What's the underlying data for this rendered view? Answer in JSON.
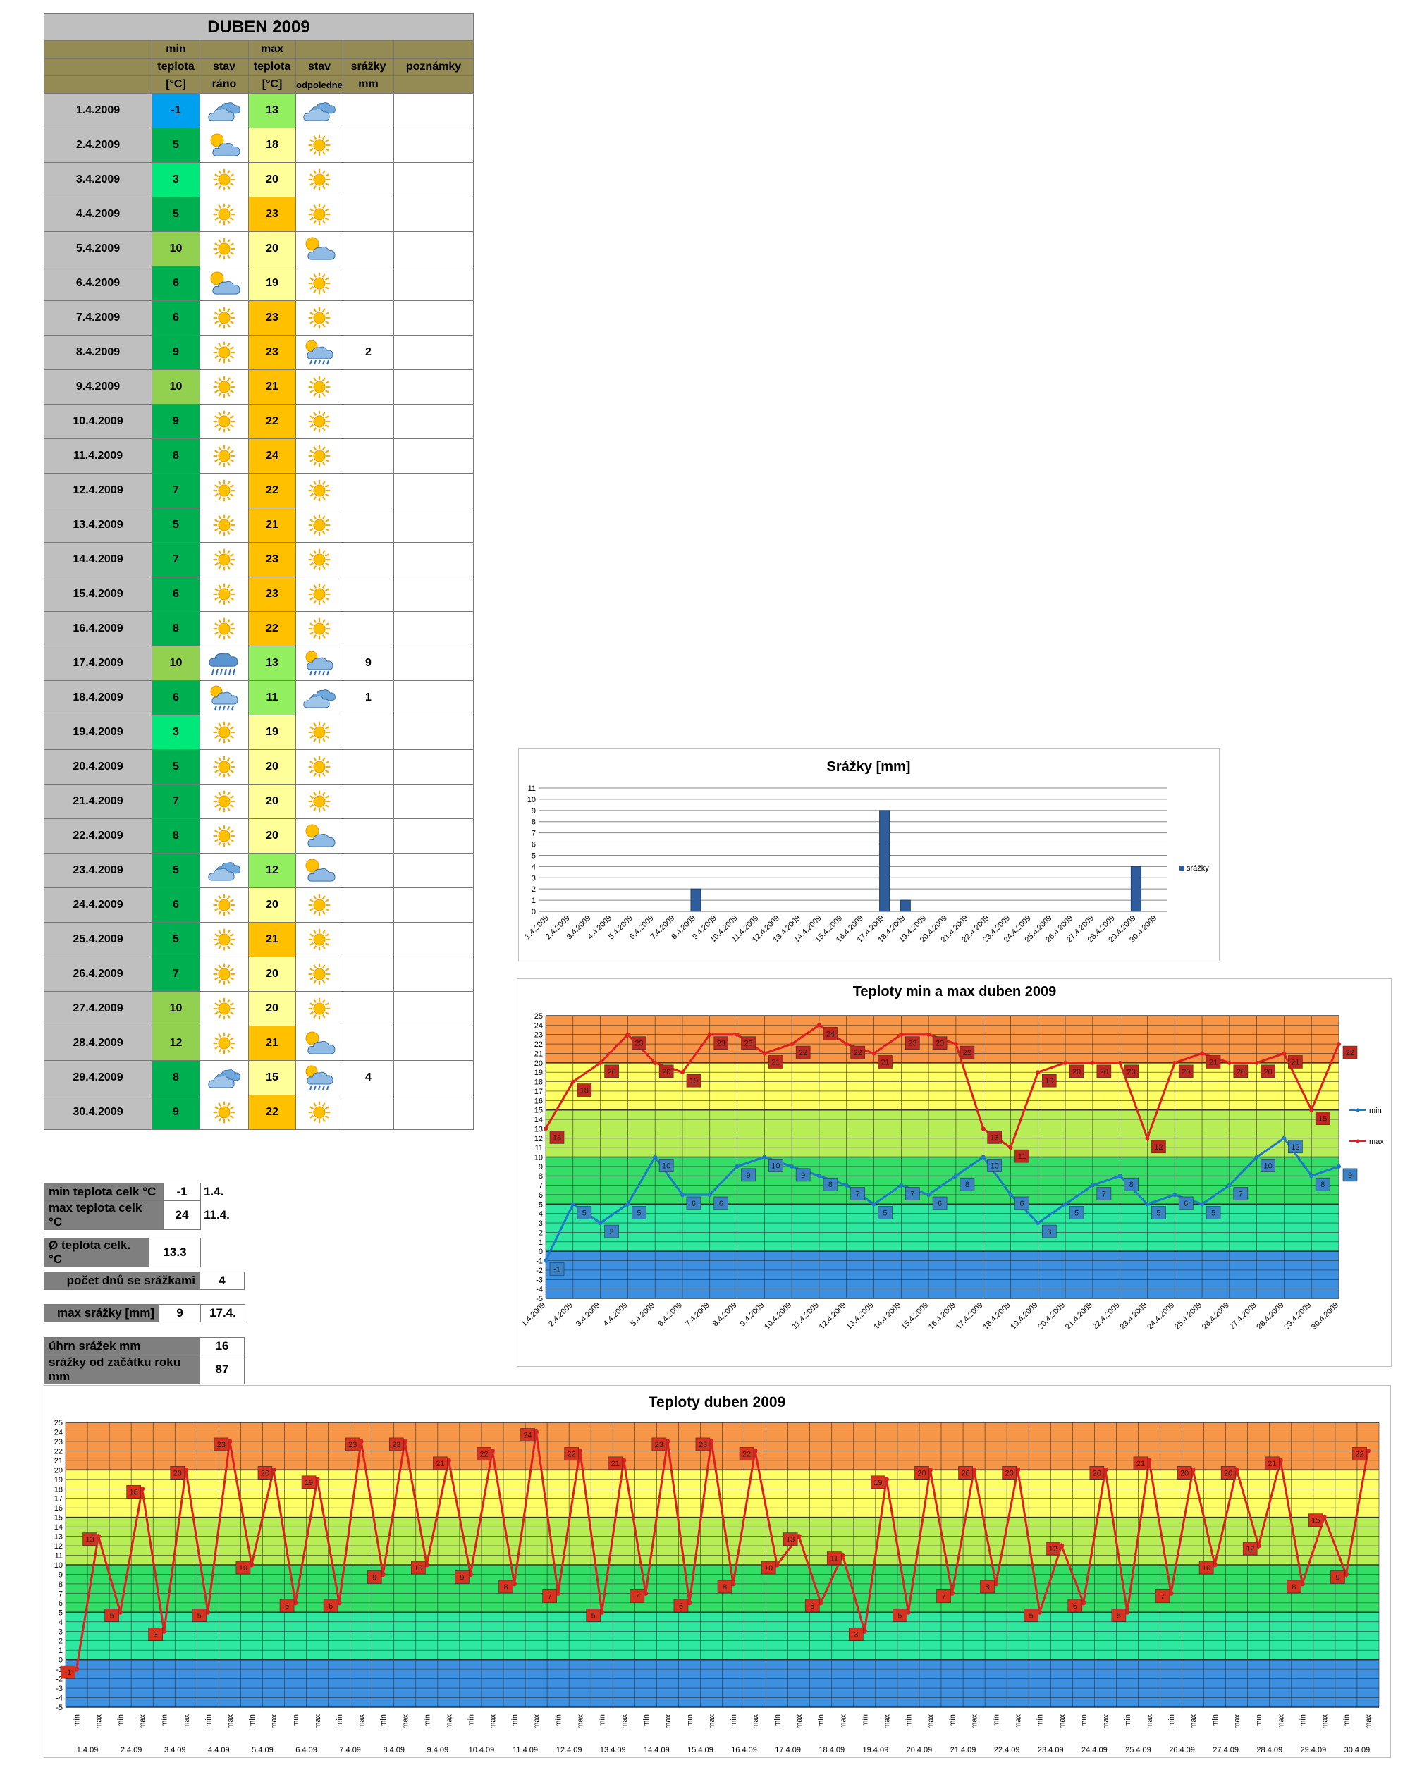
{
  "table": {
    "title": "DUBEN 2009",
    "header_row1": [
      "",
      "min",
      "",
      "max",
      "",
      "",
      ""
    ],
    "header_row2": [
      "",
      "teplota",
      "stav",
      "teplota",
      "stav",
      "srážky",
      "poznámky"
    ],
    "header_row3": [
      "",
      "[°C]",
      "ráno",
      "[°C]",
      "odpoledne",
      "mm",
      ""
    ],
    "rows": [
      {
        "date": "1.4.2009",
        "min": "-1",
        "morning": "cloud-icon",
        "max": "13",
        "afternoon": "cloud-icon",
        "rain": ""
      },
      {
        "date": "2.4.2009",
        "min": "5",
        "morning": "sun-cloud-icon",
        "max": "18",
        "afternoon": "sun-icon",
        "rain": ""
      },
      {
        "date": "3.4.2009",
        "min": "3",
        "morning": "sun-icon",
        "max": "20",
        "afternoon": "sun-icon",
        "rain": ""
      },
      {
        "date": "4.4.2009",
        "min": "5",
        "morning": "sun-icon",
        "max": "23",
        "afternoon": "sun-icon",
        "rain": ""
      },
      {
        "date": "5.4.2009",
        "min": "10",
        "morning": "sun-icon",
        "max": "20",
        "afternoon": "sun-cloud-icon",
        "rain": ""
      },
      {
        "date": "6.4.2009",
        "min": "6",
        "morning": "sun-cloud-icon",
        "max": "19",
        "afternoon": "sun-icon",
        "rain": ""
      },
      {
        "date": "7.4.2009",
        "min": "6",
        "morning": "sun-icon",
        "max": "23",
        "afternoon": "sun-icon",
        "rain": ""
      },
      {
        "date": "8.4.2009",
        "min": "9",
        "morning": "sun-icon",
        "max": "23",
        "afternoon": "sun-rain-icon",
        "rain": "2"
      },
      {
        "date": "9.4.2009",
        "min": "10",
        "morning": "sun-icon",
        "max": "21",
        "afternoon": "sun-icon",
        "rain": ""
      },
      {
        "date": "10.4.2009",
        "min": "9",
        "morning": "sun-icon",
        "max": "22",
        "afternoon": "sun-icon",
        "rain": ""
      },
      {
        "date": "11.4.2009",
        "min": "8",
        "morning": "sun-icon",
        "max": "24",
        "afternoon": "sun-icon",
        "rain": ""
      },
      {
        "date": "12.4.2009",
        "min": "7",
        "morning": "sun-icon",
        "max": "22",
        "afternoon": "sun-icon",
        "rain": ""
      },
      {
        "date": "13.4.2009",
        "min": "5",
        "morning": "sun-icon",
        "max": "21",
        "afternoon": "sun-icon",
        "rain": ""
      },
      {
        "date": "14.4.2009",
        "min": "7",
        "morning": "sun-icon",
        "max": "23",
        "afternoon": "sun-icon",
        "rain": ""
      },
      {
        "date": "15.4.2009",
        "min": "6",
        "morning": "sun-icon",
        "max": "23",
        "afternoon": "sun-icon",
        "rain": ""
      },
      {
        "date": "16.4.2009",
        "min": "8",
        "morning": "sun-icon",
        "max": "22",
        "afternoon": "sun-icon",
        "rain": ""
      },
      {
        "date": "17.4.2009",
        "min": "10",
        "morning": "rain-icon",
        "max": "13",
        "afternoon": "sun-rain-icon",
        "rain": "9"
      },
      {
        "date": "18.4.2009",
        "min": "6",
        "morning": "sun-rain-icon",
        "max": "11",
        "afternoon": "cloud-icon",
        "rain": "1"
      },
      {
        "date": "19.4.2009",
        "min": "3",
        "morning": "sun-icon",
        "max": "19",
        "afternoon": "sun-icon",
        "rain": ""
      },
      {
        "date": "20.4.2009",
        "min": "5",
        "morning": "sun-icon",
        "max": "20",
        "afternoon": "sun-icon",
        "rain": ""
      },
      {
        "date": "21.4.2009",
        "min": "7",
        "morning": "sun-icon",
        "max": "20",
        "afternoon": "sun-icon",
        "rain": ""
      },
      {
        "date": "22.4.2009",
        "min": "8",
        "morning": "sun-icon",
        "max": "20",
        "afternoon": "sun-cloud-icon",
        "rain": ""
      },
      {
        "date": "23.4.2009",
        "min": "5",
        "morning": "cloud-icon",
        "max": "12",
        "afternoon": "sun-cloud-icon",
        "rain": ""
      },
      {
        "date": "24.4.2009",
        "min": "6",
        "morning": "sun-icon",
        "max": "20",
        "afternoon": "sun-icon",
        "rain": ""
      },
      {
        "date": "25.4.2009",
        "min": "5",
        "morning": "sun-icon",
        "max": "21",
        "afternoon": "sun-icon",
        "rain": ""
      },
      {
        "date": "26.4.2009",
        "min": "7",
        "morning": "sun-icon",
        "max": "20",
        "afternoon": "sun-icon",
        "rain": ""
      },
      {
        "date": "27.4.2009",
        "min": "10",
        "morning": "sun-icon",
        "max": "20",
        "afternoon": "sun-icon",
        "rain": ""
      },
      {
        "date": "28.4.2009",
        "min": "12",
        "morning": "sun-icon",
        "max": "21",
        "afternoon": "sun-cloud-icon",
        "rain": ""
      },
      {
        "date": "29.4.2009",
        "min": "8",
        "morning": "cloud-icon",
        "max": "15",
        "afternoon": "sun-rain-icon",
        "rain": "4"
      },
      {
        "date": "30.4.2009",
        "min": "9",
        "morning": "sun-icon",
        "max": "22",
        "afternoon": "sun-icon",
        "rain": ""
      }
    ]
  },
  "stats": {
    "min_label": "min teplota celk °C",
    "min_value": "-1",
    "min_date": "1.4.",
    "max_label": "max teplota celk °C",
    "max_value": "24",
    "max_date": "11.4.",
    "avg_label": "Ø teplota celk. °C",
    "avg_value": "13.3",
    "raindays_label": "počet dnů se srážkami",
    "raindays_value": "4",
    "maxrain_label": "max srážky [mm]",
    "maxrain_value": "9",
    "maxrain_date": "17.4.",
    "sum_label": "úhrn srážek  mm",
    "sum_value": "16",
    "year_label": "srážky od začátku roku mm",
    "year_value": "87"
  },
  "colors": {
    "min_cell_low": "#00a0f0",
    "min_cell_green": "#00b050",
    "min_cell_teal": "#00e87a",
    "min_cell_light": "#92d050",
    "max_cell_yellow": "#ffff99",
    "max_cell_orange": "#ffc000",
    "max_cell_lgreen": "#92f060",
    "band_orange": "#f79646",
    "band_yellow": "#ffff66",
    "band_lgreen": "#b7ee55",
    "band_green": "#33dd66",
    "band_teal": "#2ee8a0",
    "band_blue": "#3d8fe0",
    "min_line": "#1f78c8",
    "max_line": "#e02020",
    "bar": "#2f5d9c"
  },
  "chart_data": [
    {
      "type": "bar",
      "title": "Srážky [mm]",
      "categories": [
        "1.4.2009",
        "2.4.2009",
        "3.4.2009",
        "4.4.2009",
        "5.4.2009",
        "6.4.2009",
        "7.4.2009",
        "8.4.2009",
        "9.4.2009",
        "10.4.2009",
        "11.4.2009",
        "12.4.2009",
        "13.4.2009",
        "14.4.2009",
        "15.4.2009",
        "16.4.2009",
        "17.4.2009",
        "18.4.2009",
        "19.4.2009",
        "20.4.2009",
        "21.4.2009",
        "22.4.2009",
        "23.4.2009",
        "24.4.2009",
        "25.4.2009",
        "26.4.2009",
        "27.4.2009",
        "28.4.2009",
        "29.4.2009",
        "30.4.2009"
      ],
      "series": [
        {
          "name": "srážky",
          "values": [
            0,
            0,
            0,
            0,
            0,
            0,
            0,
            2,
            0,
            0,
            0,
            0,
            0,
            0,
            0,
            0,
            9,
            1,
            0,
            0,
            0,
            0,
            0,
            0,
            0,
            0,
            0,
            0,
            4,
            0
          ]
        }
      ],
      "ylim": [
        0,
        11
      ],
      "grid": true,
      "legend": "right"
    },
    {
      "type": "line",
      "title": "Teploty min a max duben 2009",
      "categories": [
        "1.4.2009",
        "2.4.2009",
        "3.4.2009",
        "4.4.2009",
        "5.4.2009",
        "6.4.2009",
        "7.4.2009",
        "8.4.2009",
        "9.4.2009",
        "10.4.2009",
        "11.4.2009",
        "12.4.2009",
        "13.4.2009",
        "14.4.2009",
        "15.4.2009",
        "16.4.2009",
        "17.4.2009",
        "18.4.2009",
        "19.4.2009",
        "20.4.2009",
        "21.4.2009",
        "22.4.2009",
        "23.4.2009",
        "24.4.2009",
        "25.4.2009",
        "26.4.2009",
        "27.4.2009",
        "28.4.2009",
        "29.4.2009",
        "30.4.2009"
      ],
      "series": [
        {
          "name": "min",
          "values": [
            -1,
            5,
            3,
            5,
            10,
            6,
            6,
            9,
            10,
            9,
            8,
            7,
            5,
            7,
            6,
            8,
            10,
            6,
            3,
            5,
            7,
            8,
            5,
            6,
            5,
            7,
            10,
            12,
            8,
            9
          ]
        },
        {
          "name": "max",
          "values": [
            13,
            18,
            20,
            23,
            20,
            19,
            23,
            23,
            21,
            22,
            24,
            22,
            21,
            23,
            23,
            22,
            13,
            11,
            19,
            20,
            20,
            20,
            12,
            20,
            21,
            20,
            20,
            21,
            15,
            22
          ]
        }
      ],
      "ylim": [
        -5,
        25
      ],
      "grid": true,
      "legend": "right"
    },
    {
      "type": "line",
      "title": "Teploty duben 2009",
      "groups": [
        "1.4.09",
        "2.4.09",
        "3.4.09",
        "4.4.09",
        "5.4.09",
        "6.4.09",
        "7.4.09",
        "8.4.09",
        "9.4.09",
        "10.4.09",
        "11.4.09",
        "12.4.09",
        "13.4.09",
        "14.4.09",
        "15.4.09",
        "16.4.09",
        "17.4.09",
        "18.4.09",
        "19.4.09",
        "20.4.09",
        "21.4.09",
        "22.4.09",
        "23.4.09",
        "24.4.09",
        "25.4.09",
        "26.4.09",
        "27.4.09",
        "28.4.09",
        "29.4.09",
        "30.4.09"
      ],
      "subcategories": [
        "min",
        "max"
      ],
      "values": [
        -1,
        13,
        5,
        18,
        3,
        20,
        5,
        23,
        10,
        20,
        6,
        19,
        6,
        23,
        9,
        23,
        10,
        21,
        9,
        22,
        8,
        24,
        7,
        22,
        5,
        21,
        7,
        23,
        6,
        23,
        8,
        22,
        10,
        13,
        6,
        11,
        3,
        19,
        5,
        20,
        7,
        20,
        8,
        20,
        5,
        12,
        6,
        20,
        5,
        21,
        7,
        20,
        10,
        20,
        12,
        21,
        8,
        15,
        9,
        22
      ],
      "ylim": [
        -5,
        25
      ],
      "grid": true
    }
  ]
}
